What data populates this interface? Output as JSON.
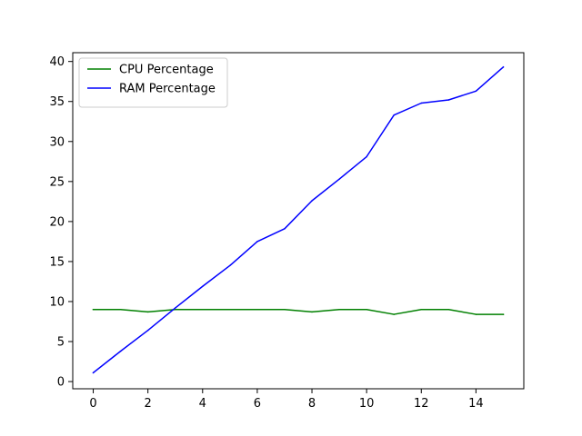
{
  "chart_data": {
    "type": "line",
    "title": "",
    "xlabel": "",
    "ylabel": "",
    "xlim": [
      -0.75,
      15.75
    ],
    "ylim": [
      -0.9,
      41.1
    ],
    "xticks": [
      0,
      2,
      4,
      6,
      8,
      10,
      12,
      14
    ],
    "yticks": [
      0,
      5,
      10,
      15,
      20,
      25,
      30,
      35,
      40
    ],
    "grid": false,
    "legend_position": "top-left",
    "x": [
      0,
      1,
      2,
      3,
      4,
      5,
      6,
      7,
      8,
      9,
      10,
      11,
      12,
      13,
      14,
      15
    ],
    "series": [
      {
        "name": "CPU Percentage",
        "color": "#008000",
        "values": [
          9.0,
          9.0,
          8.7,
          9.0,
          9.0,
          9.0,
          9.0,
          9.0,
          8.7,
          9.0,
          9.0,
          8.4,
          9.0,
          9.0,
          8.4,
          8.4
        ]
      },
      {
        "name": "RAM Percentage",
        "color": "#0000ff",
        "values": [
          1.1,
          3.8,
          6.4,
          9.2,
          11.9,
          14.5,
          17.5,
          19.1,
          22.6,
          25.3,
          28.1,
          33.3,
          34.8,
          35.2,
          36.3,
          39.3
        ]
      }
    ]
  }
}
